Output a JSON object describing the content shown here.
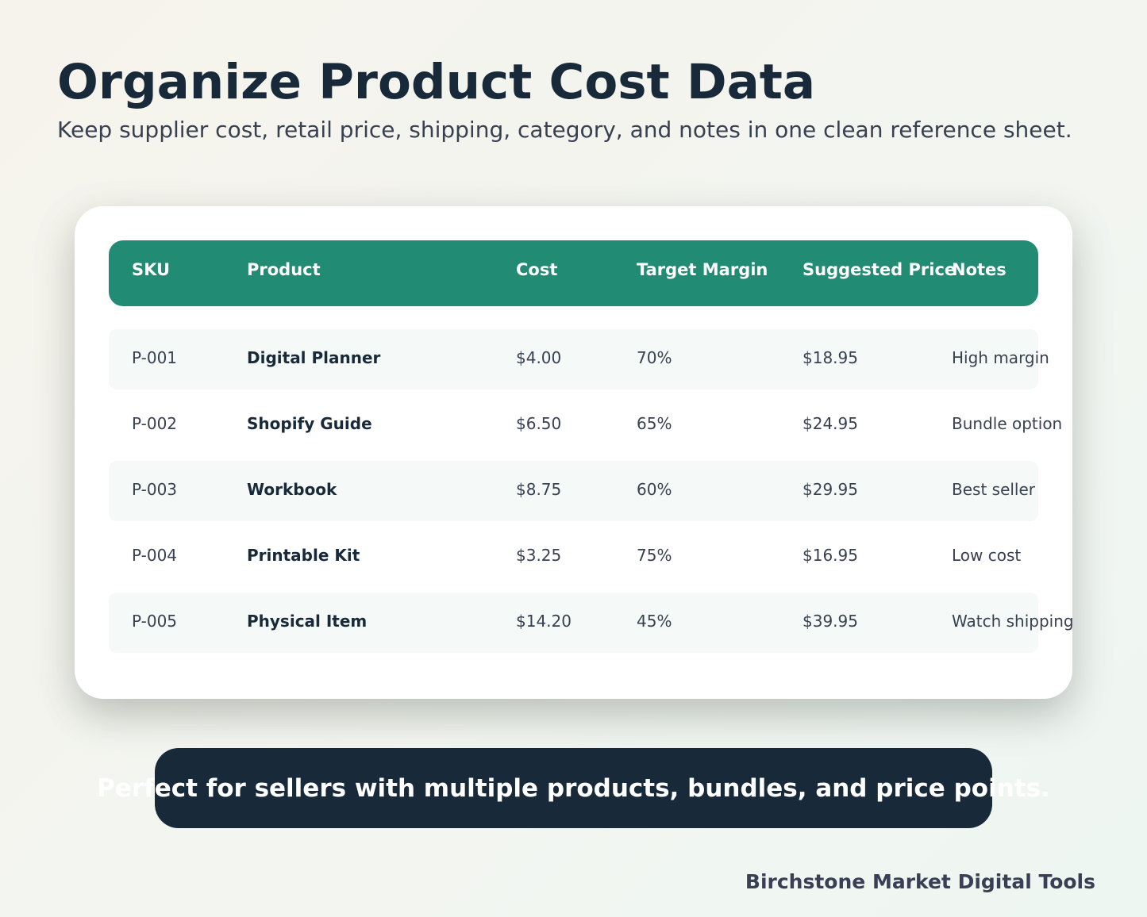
{
  "header": {
    "title": "Organize Product Cost Data",
    "subtitle": "Keep supplier cost, retail price, shipping, category, and notes in one clean reference sheet."
  },
  "table": {
    "columns": [
      "SKU",
      "Product",
      "Cost",
      "Target Margin",
      "Suggested Price",
      "Notes"
    ],
    "rows": [
      [
        "P-001",
        "Digital Planner",
        "$4.00",
        "70%",
        "$18.95",
        "High margin"
      ],
      [
        "P-002",
        "Shopify Guide",
        "$6.50",
        "65%",
        "$24.95",
        "Bundle option"
      ],
      [
        "P-003",
        "Workbook",
        "$8.75",
        "60%",
        "$29.95",
        "Best seller"
      ],
      [
        "P-004",
        "Printable Kit",
        "$3.25",
        "75%",
        "$16.95",
        "Low cost"
      ],
      [
        "P-005",
        "Physical Item",
        "$14.20",
        "45%",
        "$39.95",
        "Watch shipping"
      ]
    ]
  },
  "banner": "Perfect for sellers with multiple products, bundles, and price points.",
  "footer": "Birchstone Market Digital Tools"
}
